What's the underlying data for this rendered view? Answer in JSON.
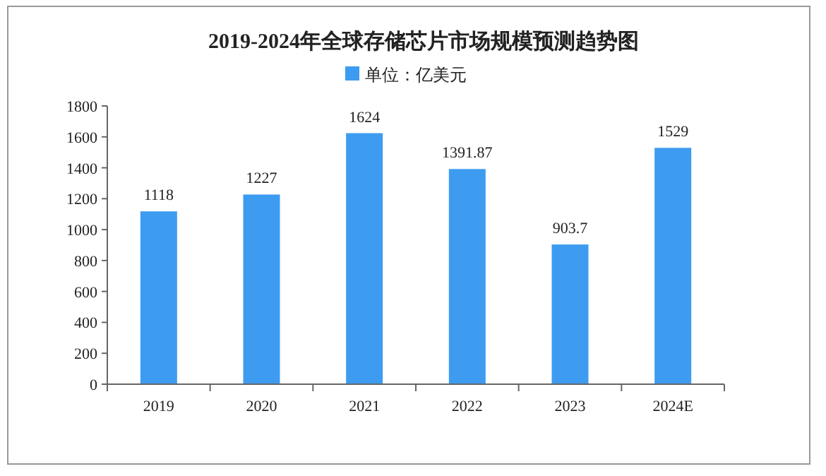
{
  "chart_data": {
    "type": "bar",
    "title": "2019-2024年全球存储芯片市场规模预测趋势图",
    "categories": [
      "2019",
      "2020",
      "2021",
      "2022",
      "2023",
      "2024E"
    ],
    "series": [
      {
        "name": "单位：亿美元",
        "color": "#3d9cf0",
        "values": [
          1118,
          1227,
          1624,
          1391.87,
          903.7,
          1529
        ]
      }
    ],
    "ylim": [
      0,
      1800
    ],
    "yticks": [
      0,
      200,
      400,
      600,
      800,
      1000,
      1200,
      1400,
      1600,
      1800
    ],
    "data_labels": true,
    "legend": "top",
    "grid": false
  }
}
